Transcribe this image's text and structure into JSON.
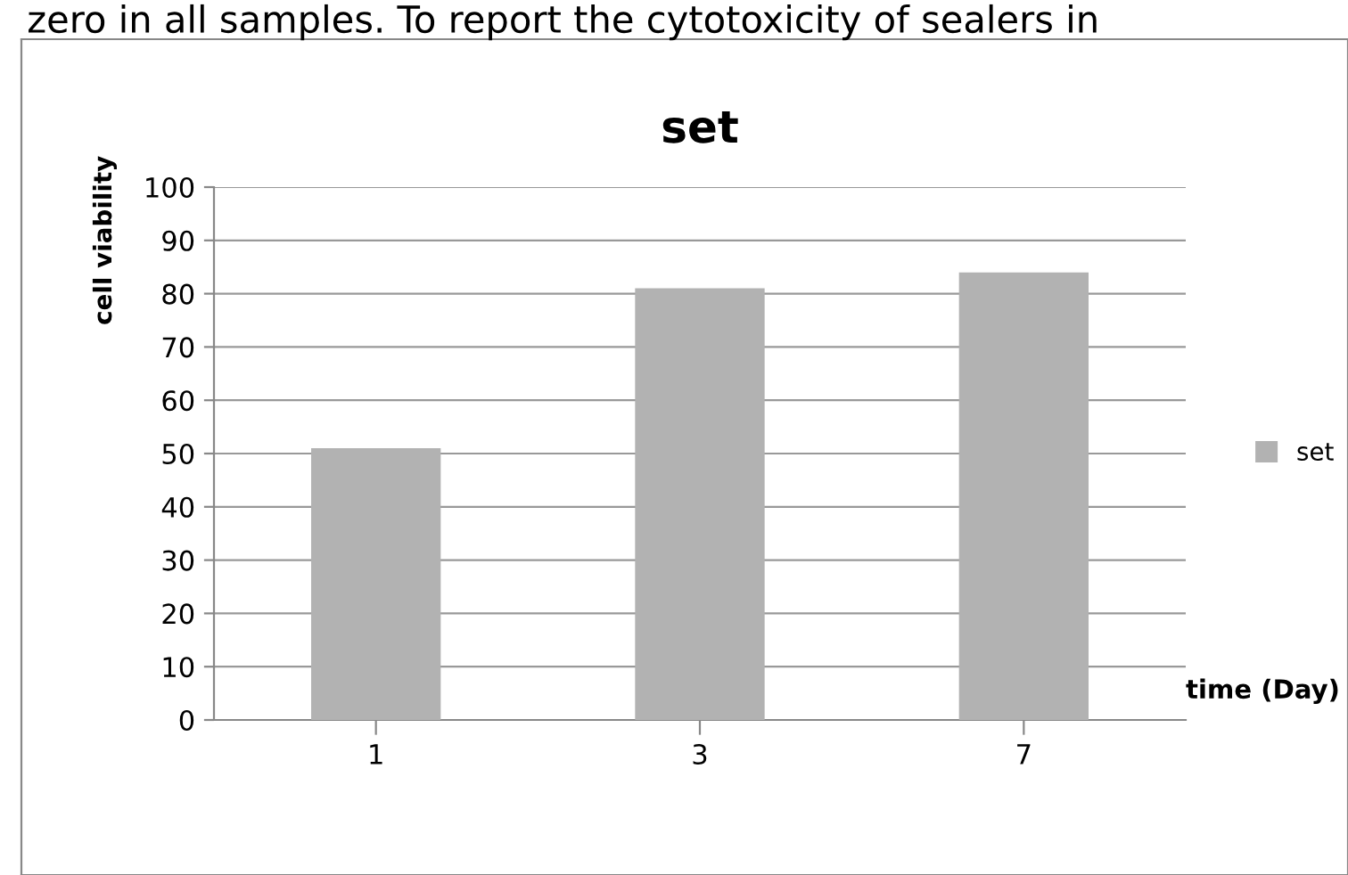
{
  "chart_data": {
    "type": "bar",
    "title": "set",
    "xlabel": "time (Day)",
    "ylabel": "cell viability",
    "categories": [
      "1",
      "3",
      "7"
    ],
    "series": [
      {
        "name": "set",
        "color": "#b2b2b2",
        "values": [
          51,
          81,
          84
        ]
      }
    ],
    "ylim": [
      0,
      100
    ],
    "yticks": [
      0,
      10,
      20,
      30,
      40,
      50,
      60,
      70,
      80,
      90,
      100
    ],
    "grid": "y",
    "legend": "right",
    "annotations": [
      "zero in all samples. To report the cytotoxicity of sealers in"
    ]
  }
}
